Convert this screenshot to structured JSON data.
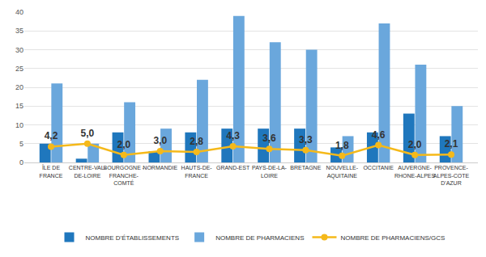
{
  "chart_data": {
    "type": "bar",
    "categories": [
      "ÎLE DE FRANCE",
      "CENTRE-VAL-DE-LOIRE",
      "BOURGOGNE - FRANCHE-COMTÉ",
      "NORMANDIE",
      "HAUTS-DE-FRANCE",
      "GRAND-EST",
      "PAYS-DE-LA-LOIRE",
      "BRETAGNE",
      "NOUVELLE-AQUITAINE",
      "OCCITANIE",
      "AUVERGNE-RHONE-ALPES",
      "PROVENCE-ALPES-COTE D'AZUR"
    ],
    "series": [
      {
        "name": "NOMBRE D'ÉTABLISSEMENTS",
        "type": "bar",
        "color": "#1f77bd",
        "values": [
          5,
          1,
          8,
          3,
          8,
          9,
          9,
          9,
          4,
          8,
          13,
          7
        ]
      },
      {
        "name": "NOMBRE DE PHARMACIENS",
        "type": "bar",
        "color": "#6aa7dc",
        "values": [
          21,
          5,
          16,
          9,
          22,
          39,
          32,
          30,
          7,
          37,
          26,
          15
        ]
      },
      {
        "name": "NOMBRE DE PHARMACIENS/GCS",
        "type": "line",
        "color": "#f5b91a",
        "marker": "circle",
        "line_style": "solid",
        "data_labels": true,
        "values": [
          4.2,
          5.0,
          2.0,
          3.0,
          2.8,
          4.3,
          3.6,
          3.3,
          1.8,
          4.6,
          2.0,
          2.1
        ],
        "value_labels": [
          "4,2",
          "5,0",
          "2,0",
          "3,0",
          "2,8",
          "4,3",
          "3,6",
          "3,3",
          "1,8",
          "4,6",
          "2,0",
          "2,1"
        ]
      }
    ],
    "ylim": [
      0,
      40
    ],
    "yticks": [
      0,
      5,
      10,
      15,
      20,
      25,
      30,
      35,
      40
    ],
    "grid": true,
    "legend": "bottom"
  }
}
